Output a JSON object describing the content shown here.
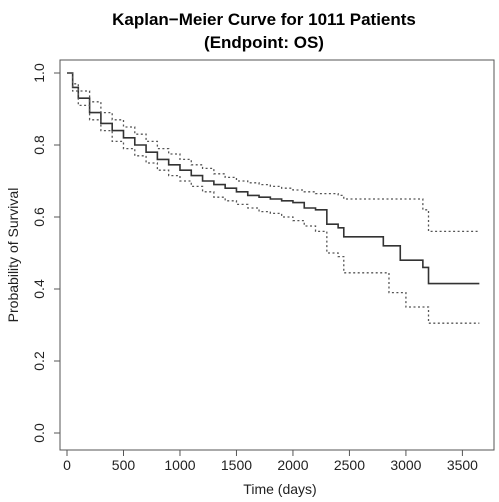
{
  "chart_data": {
    "type": "line",
    "title": "Kaplan−Meier Curve for 1011 Patients",
    "subtitle": "(Endpoint: OS)",
    "xlabel": "Time (days)",
    "ylabel": "Probability of Survival",
    "xlim": [
      0,
      3700
    ],
    "ylim": [
      0.0,
      1.0
    ],
    "xticks": [
      0,
      500,
      1000,
      1500,
      2000,
      2500,
      3000,
      3500
    ],
    "yticks": [
      0.0,
      0.2,
      0.4,
      0.6,
      0.8,
      1.0
    ],
    "grid": false,
    "colors": {
      "estimate": "#333333",
      "ci": "#555555"
    },
    "series": [
      {
        "style": "solid-step",
        "x": [
          0,
          50,
          100,
          200,
          300,
          400,
          500,
          600,
          700,
          800,
          900,
          1000,
          1100,
          1200,
          1300,
          1400,
          1500,
          1600,
          1700,
          1800,
          1900,
          2000,
          2100,
          2200,
          2300,
          2400,
          2450,
          2800,
          2950,
          3150,
          3200,
          3650
        ],
        "y": [
          1.0,
          0.96,
          0.93,
          0.89,
          0.86,
          0.84,
          0.82,
          0.8,
          0.78,
          0.76,
          0.745,
          0.73,
          0.715,
          0.7,
          0.69,
          0.68,
          0.67,
          0.66,
          0.655,
          0.65,
          0.645,
          0.64,
          0.625,
          0.62,
          0.58,
          0.57,
          0.545,
          0.52,
          0.48,
          0.46,
          0.415,
          0.415
        ]
      },
      {
        "style": "dotted-step",
        "x": [
          0,
          50,
          100,
          200,
          300,
          400,
          500,
          600,
          700,
          800,
          900,
          1000,
          1100,
          1200,
          1300,
          1400,
          1500,
          1600,
          1700,
          1800,
          1900,
          2000,
          2100,
          2200,
          2300,
          2400,
          2450,
          3150,
          3200,
          3650
        ],
        "y": [
          1.0,
          0.97,
          0.95,
          0.92,
          0.89,
          0.87,
          0.85,
          0.83,
          0.81,
          0.79,
          0.775,
          0.76,
          0.745,
          0.735,
          0.72,
          0.71,
          0.7,
          0.695,
          0.69,
          0.685,
          0.68,
          0.675,
          0.67,
          0.665,
          0.665,
          0.66,
          0.65,
          0.62,
          0.56,
          0.56
        ]
      },
      {
        "style": "dotted-step",
        "x": [
          0,
          50,
          100,
          200,
          300,
          400,
          500,
          600,
          700,
          800,
          900,
          1000,
          1100,
          1200,
          1300,
          1400,
          1500,
          1600,
          1700,
          1800,
          1900,
          2000,
          2100,
          2200,
          2300,
          2400,
          2450,
          2850,
          3000,
          3200,
          3650
        ],
        "y": [
          1.0,
          0.95,
          0.91,
          0.87,
          0.84,
          0.81,
          0.79,
          0.77,
          0.75,
          0.73,
          0.715,
          0.7,
          0.685,
          0.67,
          0.655,
          0.645,
          0.635,
          0.625,
          0.615,
          0.61,
          0.6,
          0.59,
          0.575,
          0.56,
          0.5,
          0.49,
          0.445,
          0.39,
          0.35,
          0.305,
          0.305
        ]
      }
    ]
  }
}
